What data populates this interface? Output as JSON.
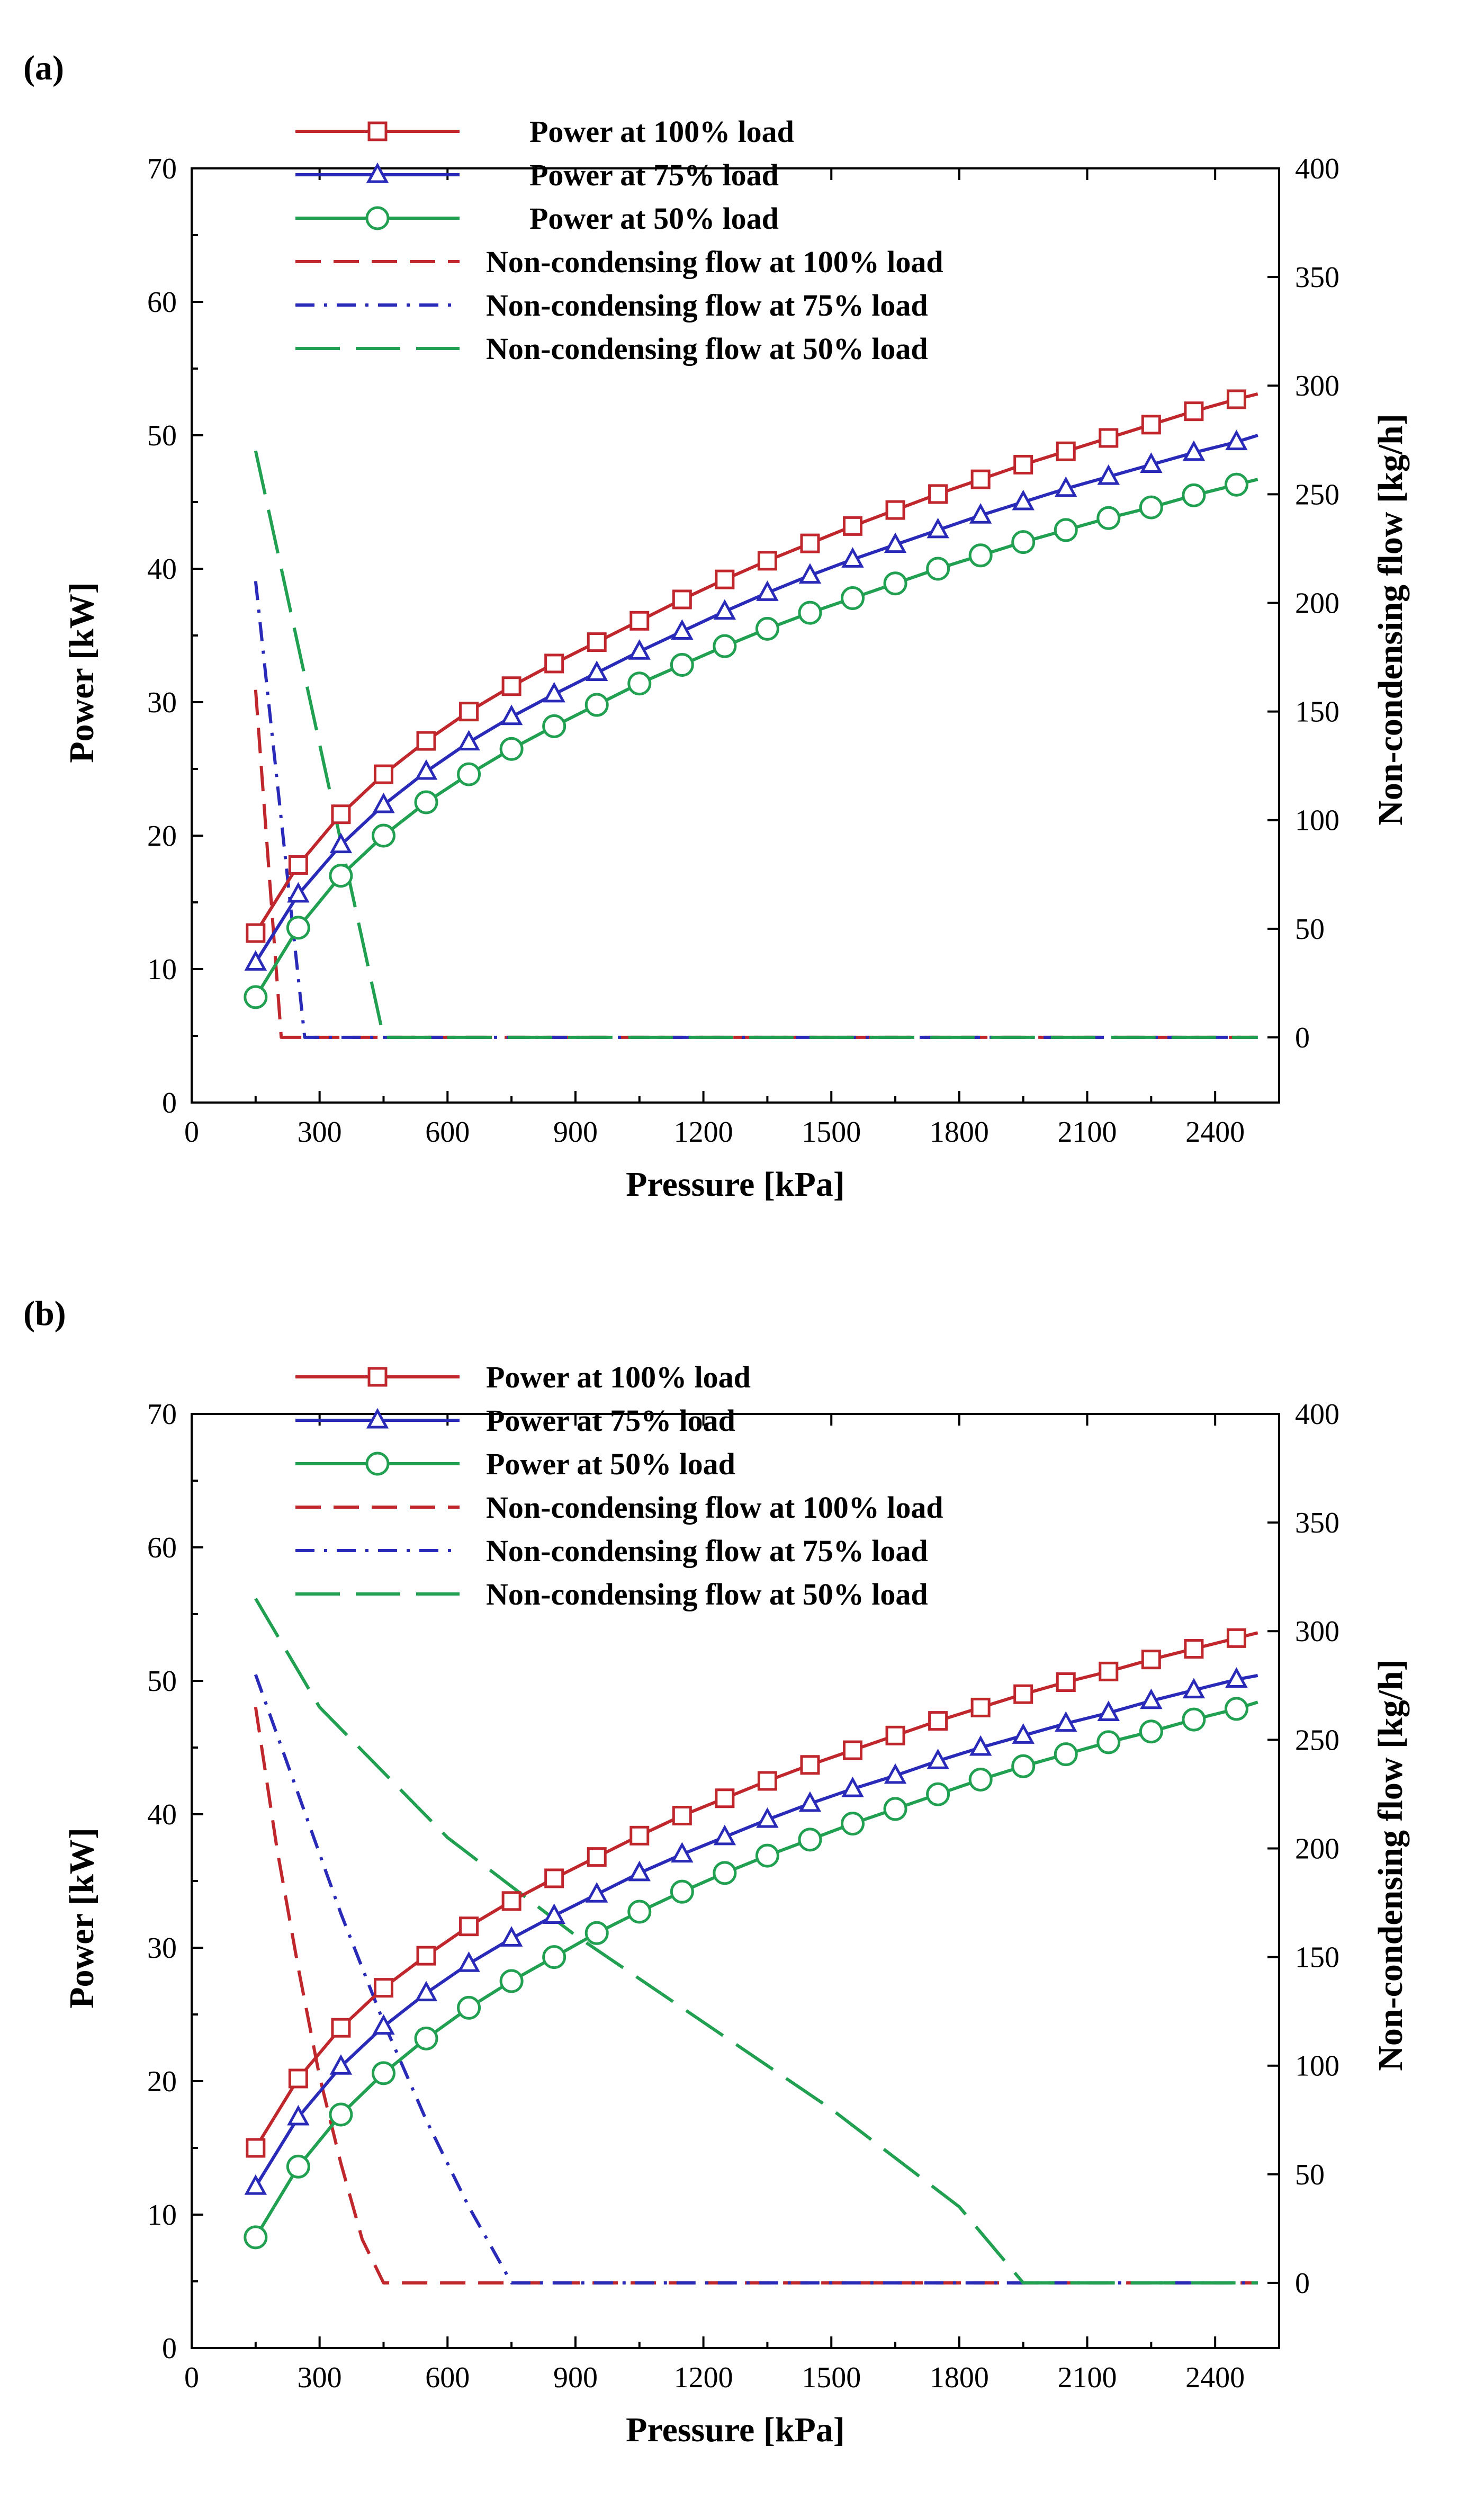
{
  "figure": {
    "panel_labels": [
      "(a)",
      "(b)"
    ]
  },
  "chart_data": [
    {
      "type": "line",
      "panel": "(a)",
      "xlabel": "Pressure [kPa]",
      "ylabel": "Power [kW]",
      "y2label": "Non-condensing flow [kg/h]",
      "xlim": [
        0,
        2550
      ],
      "ylim": [
        0,
        70
      ],
      "y2lim": [
        -30,
        400
      ],
      "xticks": [
        0,
        300,
        600,
        900,
        1200,
        1500,
        1800,
        2100,
        2400
      ],
      "yticks": [
        0,
        10,
        20,
        30,
        40,
        50,
        60,
        70
      ],
      "y2ticks": [
        0,
        50,
        100,
        150,
        200,
        250,
        300,
        350,
        400
      ],
      "legend_position": "top-left",
      "grid": false,
      "series": [
        {
          "name": "Power at 100% load",
          "axis": "left",
          "style": "solid-square",
          "color": "#c0272d",
          "x": [
            150,
            250,
            350,
            450,
            550,
            650,
            750,
            850,
            950,
            1050,
            1150,
            1250,
            1350,
            1450,
            1550,
            1650,
            1750,
            1850,
            1950,
            2050,
            2150,
            2250,
            2350,
            2450,
            2500
          ],
          "y": [
            12.7,
            17.8,
            21.6,
            24.6,
            27.1,
            29.3,
            31.2,
            32.9,
            34.5,
            36.1,
            37.7,
            39.2,
            40.6,
            41.9,
            43.2,
            44.4,
            45.6,
            46.7,
            47.8,
            48.8,
            49.8,
            50.8,
            51.8,
            52.7,
            53.1
          ]
        },
        {
          "name": "Power at 75% load",
          "axis": "left",
          "style": "solid-triangle",
          "color": "#2a2ab8",
          "x": [
            150,
            250,
            350,
            450,
            550,
            650,
            750,
            850,
            950,
            1050,
            1150,
            1250,
            1350,
            1450,
            1550,
            1650,
            1750,
            1850,
            1950,
            2050,
            2150,
            2250,
            2350,
            2450,
            2500
          ],
          "y": [
            10.5,
            15.6,
            19.3,
            22.3,
            24.8,
            27.0,
            28.9,
            30.6,
            32.2,
            33.8,
            35.3,
            36.8,
            38.2,
            39.5,
            40.7,
            41.8,
            42.9,
            44.0,
            45.0,
            46.0,
            46.9,
            47.8,
            48.7,
            49.5,
            50.0
          ]
        },
        {
          "name": "Power at 50% load",
          "axis": "left",
          "style": "solid-circle",
          "color": "#20a050",
          "x": [
            150,
            250,
            350,
            450,
            550,
            650,
            750,
            850,
            950,
            1050,
            1150,
            1250,
            1350,
            1450,
            1550,
            1650,
            1750,
            1850,
            1950,
            2050,
            2150,
            2250,
            2350,
            2450,
            2500
          ],
          "y": [
            7.9,
            13.1,
            17.0,
            20.0,
            22.5,
            24.6,
            26.5,
            28.2,
            29.8,
            31.4,
            32.8,
            34.2,
            35.5,
            36.7,
            37.8,
            38.9,
            40.0,
            41.0,
            42.0,
            42.9,
            43.8,
            44.6,
            45.5,
            46.3,
            46.7
          ]
        },
        {
          "name": "Non-condensing flow at 100% load",
          "axis": "right",
          "style": "dash",
          "color": "#c0272d",
          "x": [
            150,
            210,
            2500
          ],
          "y": [
            160,
            0,
            0
          ]
        },
        {
          "name": "Non-condensing flow at 75% load",
          "axis": "right",
          "style": "dashdot",
          "color": "#2a2ab8",
          "x": [
            150,
            265,
            2500
          ],
          "y": [
            210,
            0,
            0
          ]
        },
        {
          "name": "Non-condensing flow at 50% load",
          "axis": "right",
          "style": "longdash",
          "color": "#20a050",
          "x": [
            150,
            450,
            2500
          ],
          "y": [
            270,
            0,
            0
          ]
        }
      ]
    },
    {
      "type": "line",
      "panel": "(b)",
      "xlabel": "Pressure [kPa]",
      "ylabel": "Power [kW]",
      "y2label": "Non-condensing flow [kg/h]",
      "xlim": [
        0,
        2550
      ],
      "ylim": [
        0,
        70
      ],
      "y2lim": [
        -30,
        400
      ],
      "xticks": [
        0,
        300,
        600,
        900,
        1200,
        1500,
        1800,
        2100,
        2400
      ],
      "yticks": [
        0,
        10,
        20,
        30,
        40,
        50,
        60,
        70
      ],
      "y2ticks": [
        0,
        50,
        100,
        150,
        200,
        250,
        300,
        350,
        400
      ],
      "legend_position": "top-left",
      "grid": false,
      "series": [
        {
          "name": "Power at 100% load",
          "axis": "left",
          "style": "solid-square",
          "color": "#c0272d",
          "x": [
            150,
            250,
            350,
            450,
            550,
            650,
            750,
            850,
            950,
            1050,
            1150,
            1250,
            1350,
            1450,
            1550,
            1650,
            1750,
            1850,
            1950,
            2050,
            2150,
            2250,
            2350,
            2450,
            2500
          ],
          "y": [
            15.0,
            20.2,
            24.0,
            27.0,
            29.4,
            31.6,
            33.5,
            35.2,
            36.8,
            38.4,
            39.9,
            41.2,
            42.5,
            43.7,
            44.8,
            45.9,
            47.0,
            48.0,
            49.0,
            49.9,
            50.7,
            51.6,
            52.4,
            53.2,
            53.6
          ]
        },
        {
          "name": "Power at 75% load",
          "axis": "left",
          "style": "solid-triangle",
          "color": "#2a2ab8",
          "x": [
            150,
            250,
            350,
            450,
            550,
            650,
            750,
            850,
            950,
            1050,
            1150,
            1250,
            1350,
            1450,
            1550,
            1650,
            1750,
            1850,
            1950,
            2050,
            2150,
            2250,
            2350,
            2450,
            2500
          ],
          "y": [
            12.1,
            17.3,
            21.1,
            24.1,
            26.6,
            28.8,
            30.7,
            32.4,
            34.0,
            35.6,
            37.0,
            38.3,
            39.6,
            40.8,
            41.9,
            42.9,
            44.0,
            45.0,
            45.9,
            46.8,
            47.6,
            48.5,
            49.3,
            50.1,
            50.4
          ]
        },
        {
          "name": "Power at 50% load",
          "axis": "left",
          "style": "solid-circle",
          "color": "#20a050",
          "x": [
            150,
            250,
            350,
            450,
            550,
            650,
            750,
            850,
            950,
            1050,
            1150,
            1250,
            1350,
            1450,
            1550,
            1650,
            1750,
            1850,
            1950,
            2050,
            2150,
            2250,
            2350,
            2450,
            2500
          ],
          "y": [
            8.3,
            13.6,
            17.5,
            20.6,
            23.2,
            25.5,
            27.5,
            29.3,
            31.1,
            32.7,
            34.2,
            35.6,
            36.9,
            38.1,
            39.3,
            40.4,
            41.5,
            42.6,
            43.6,
            44.5,
            45.4,
            46.2,
            47.1,
            47.9,
            48.4
          ]
        },
        {
          "name": "Non-condensing flow at 100% load",
          "axis": "right",
          "style": "dash",
          "color": "#c0272d",
          "x": [
            150,
            200,
            250,
            300,
            350,
            400,
            450,
            2500
          ],
          "y": [
            265,
            200,
            145,
            95,
            55,
            20,
            0,
            0
          ]
        },
        {
          "name": "Non-condensing flow at 75% load",
          "axis": "right",
          "style": "dashdot",
          "color": "#2a2ab8",
          "x": [
            150,
            250,
            350,
            450,
            550,
            650,
            750,
            2500
          ],
          "y": [
            280,
            225,
            170,
            120,
            75,
            35,
            0,
            0
          ]
        },
        {
          "name": "Non-condensing flow at 50% load",
          "axis": "right",
          "style": "longdash",
          "color": "#20a050",
          "x": [
            150,
            300,
            600,
            900,
            1200,
            1500,
            1800,
            1950,
            2500
          ],
          "y": [
            315,
            265,
            205,
            160,
            120,
            80,
            35,
            0,
            0
          ]
        }
      ]
    }
  ]
}
